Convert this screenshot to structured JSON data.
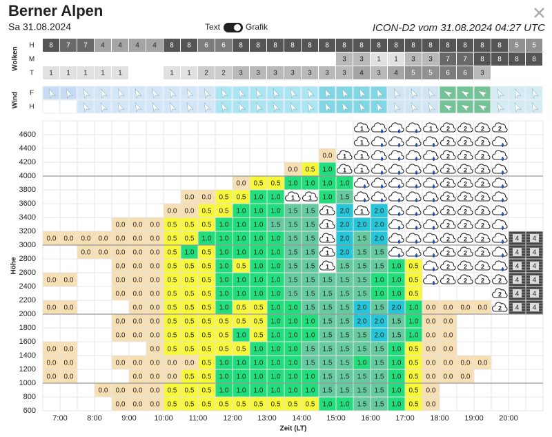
{
  "header": {
    "title": "Berner Alpen",
    "date": "Sa 31.08.2024",
    "toggle_left": "Text",
    "toggle_right": "Grafik",
    "model": "ICON-D2 vom 31.08.2024 04:27 UTC"
  },
  "clouds": {
    "label": "Wolken",
    "rows": [
      {
        "name": "H",
        "values": [
          8,
          7,
          7,
          4,
          4,
          4,
          4,
          8,
          8,
          6,
          6,
          8,
          8,
          8,
          8,
          8,
          8,
          8,
          8,
          8,
          8,
          8,
          8,
          8,
          8,
          8,
          8,
          5,
          5
        ]
      },
      {
        "name": "M",
        "values": [
          null,
          null,
          null,
          null,
          null,
          null,
          null,
          null,
          null,
          null,
          null,
          null,
          null,
          null,
          null,
          null,
          null,
          3,
          3,
          1,
          1,
          3,
          3,
          7,
          7,
          8,
          8,
          8,
          8
        ]
      },
      {
        "name": "T",
        "values": [
          1,
          1,
          1,
          1,
          1,
          null,
          null,
          1,
          1,
          2,
          2,
          3,
          3,
          3,
          3,
          3,
          3,
          3,
          4,
          3,
          4,
          5,
          5,
          6,
          6,
          3,
          null,
          null,
          null
        ]
      }
    ]
  },
  "wind": {
    "label": "Wind",
    "rows": [
      {
        "name": "F"
      },
      {
        "name": "H"
      }
    ]
  },
  "grid": {
    "y_label": "Höhe",
    "x_label": "Zeit (LT)",
    "yticks": [
      4600,
      4400,
      4200,
      4000,
      3800,
      3600,
      3400,
      3200,
      3000,
      2800,
      2600,
      2400,
      2200,
      2000,
      1800,
      1600,
      1400,
      1200,
      1000,
      800,
      600
    ],
    "times": [
      "7:00",
      "8:00",
      "9:00",
      "10:00",
      "11:00",
      "12:00",
      "13:00",
      "14:00",
      "15:00",
      "16:00",
      "17:00",
      "18:00",
      "19:00",
      "20:00"
    ],
    "colors": {
      "0.0": "#f6dfb2",
      "0.5": "#f8f83a",
      "1.0": "#22dd7c",
      "1.5": "#66caa0",
      "2.0": "#27c5d8"
    },
    "rows": [
      [
        null,
        null,
        null,
        null,
        null,
        null,
        null,
        null,
        null,
        null,
        null,
        null,
        null,
        null,
        null,
        null,
        null,
        null,
        {
          "icon": "cloud",
          "text": "1"
        },
        {
          "icon": "rain"
        },
        {
          "icon": "rain"
        },
        {
          "icon": "rain"
        },
        {
          "icon": "cloud",
          "text": "1"
        },
        {
          "icon": "cloud",
          "text": "2"
        },
        {
          "icon": "cloud",
          "text": "2"
        },
        {
          "icon": "cloud",
          "text": "2"
        },
        {
          "icon": "cloud",
          "text": "2"
        },
        null,
        null
      ],
      [
        null,
        null,
        null,
        null,
        null,
        null,
        null,
        null,
        null,
        null,
        null,
        null,
        null,
        null,
        null,
        null,
        null,
        null,
        {
          "icon": "cloud",
          "text": "1"
        },
        {
          "icon": "rain"
        },
        {
          "icon": "rain"
        },
        {
          "icon": "rain"
        },
        {
          "icon": "rain"
        },
        {
          "icon": "cloud",
          "text": "2"
        },
        {
          "icon": "cloud",
          "text": "2"
        },
        {
          "icon": "cloud",
          "text": "2"
        },
        {
          "icon": "rain"
        },
        null,
        null
      ],
      [
        null,
        null,
        null,
        null,
        null,
        null,
        null,
        null,
        null,
        null,
        null,
        null,
        null,
        null,
        null,
        null,
        "0.0",
        {
          "icon": "cloud",
          "text": "1"
        },
        {
          "icon": "cloud",
          "text": "1"
        },
        {
          "icon": "rain"
        },
        {
          "icon": "rain"
        },
        {
          "icon": "rain"
        },
        {
          "icon": "rain"
        },
        {
          "icon": "cloud",
          "text": "2"
        },
        {
          "icon": "cloud",
          "text": "2"
        },
        {
          "icon": "cloud",
          "text": "2"
        },
        {
          "icon": "rain"
        },
        null,
        null
      ],
      [
        null,
        null,
        null,
        null,
        null,
        null,
        null,
        null,
        null,
        null,
        null,
        null,
        null,
        null,
        "0.0",
        "0.5",
        "1.0",
        {
          "icon": "cloud",
          "text": "1"
        },
        {
          "icon": "cloud",
          "text": "1"
        },
        {
          "icon": "rain"
        },
        {
          "icon": "rain"
        },
        {
          "icon": "rain"
        },
        {
          "icon": "rain"
        },
        {
          "icon": "cloud",
          "text": "2"
        },
        {
          "icon": "cloud",
          "text": "2"
        },
        {
          "icon": "cloud",
          "text": "2"
        },
        {
          "icon": "rain"
        },
        null,
        null
      ],
      [
        null,
        null,
        null,
        null,
        null,
        null,
        null,
        null,
        null,
        null,
        null,
        "0.0",
        "0.5",
        "0.5",
        "1.0",
        "1.0",
        "1.0",
        "1.0",
        {
          "icon": "rain"
        },
        {
          "icon": "rain"
        },
        {
          "icon": "rain"
        },
        {
          "icon": "rain"
        },
        {
          "icon": "rain"
        },
        {
          "icon": "cloud",
          "text": "2"
        },
        {
          "icon": "cloud",
          "text": "2"
        },
        {
          "icon": "cloud",
          "text": "2"
        },
        {
          "icon": "rain"
        },
        null,
        null
      ],
      [
        null,
        null,
        null,
        null,
        null,
        null,
        null,
        null,
        "0.0",
        "0.0",
        "0.5",
        "0.5",
        "1.0",
        "1.0",
        {
          "icon": "cloud",
          "text": "1"
        },
        {
          "icon": "cloud",
          "text": "1"
        },
        "1.0",
        "1.5",
        {
          "icon": "rain"
        },
        {
          "icon": "rain"
        },
        {
          "icon": "rain"
        },
        {
          "icon": "rain"
        },
        {
          "icon": "rain"
        },
        {
          "icon": "cloud",
          "text": "2"
        },
        {
          "icon": "cloud",
          "text": "2"
        },
        {
          "icon": "cloud",
          "text": "2"
        },
        {
          "icon": "rain"
        },
        null,
        null
      ],
      [
        null,
        null,
        null,
        null,
        null,
        null,
        null,
        "0.0",
        "0.0",
        "0.5",
        "0.5",
        "1.0",
        "1.0",
        "1.0",
        "1.5",
        "1.5",
        {
          "icon": "cloud",
          "text": "1"
        },
        "2.0",
        {
          "icon": "cloud",
          "text": "1"
        },
        "2.0",
        {
          "icon": "rain"
        },
        {
          "icon": "rain"
        },
        {
          "icon": "rain"
        },
        {
          "icon": "cloud",
          "text": "2"
        },
        {
          "icon": "cloud",
          "text": "2"
        },
        {
          "icon": "cloud",
          "text": "2"
        },
        {
          "icon": "rain"
        },
        null,
        null
      ],
      [
        null,
        null,
        null,
        null,
        "0.0",
        "0.0",
        "0.0",
        "0.5",
        "0.5",
        "0.5",
        "1.0",
        "1.0",
        "1.0",
        "1.5",
        "1.5",
        "1.5",
        {
          "icon": "cloud",
          "text": "1"
        },
        "2.0",
        "2.0",
        "2.0",
        {
          "icon": "rain"
        },
        {
          "icon": "rain"
        },
        {
          "icon": "rain"
        },
        {
          "icon": "cloud",
          "text": "2"
        },
        {
          "icon": "cloud",
          "text": "2"
        },
        {
          "icon": "cloud",
          "text": "2"
        },
        {
          "icon": "rain"
        },
        null,
        null
      ],
      [
        "0.0",
        "0.0",
        "0.0",
        "0.0",
        "0.0",
        "0.0",
        "0.0",
        "0.5",
        "0.5",
        "1.0",
        "1.0",
        "1.0",
        "1.0",
        "1.0",
        "1.5",
        "1.5",
        {
          "icon": "cloud",
          "text": "1"
        },
        "2.0",
        "1.5",
        "2.0",
        {
          "icon": "rain"
        },
        {
          "icon": "rain"
        },
        {
          "icon": "rain"
        },
        {
          "icon": "cloud",
          "text": "2"
        },
        {
          "icon": "cloud",
          "text": "2"
        },
        {
          "icon": "cloud",
          "text": "2"
        },
        {
          "icon": "rain"
        },
        {
          "icon": "striped",
          "text": "4"
        },
        {
          "icon": "striped",
          "text": "4"
        }
      ],
      [
        null,
        null,
        "0.0",
        "0.0",
        "0.0",
        "0.0",
        "0.0",
        "0.5",
        "1.0",
        "0.5",
        "1.0",
        "1.0",
        "1.0",
        "1.0",
        "1.5",
        "1.5",
        {
          "icon": "cloud",
          "text": "1"
        },
        "2.0",
        "1.5",
        "1.5",
        {
          "icon": "rain"
        },
        {
          "icon": "rain"
        },
        {
          "icon": "rain"
        },
        {
          "icon": "cloud",
          "text": "2"
        },
        {
          "icon": "cloud",
          "text": "2"
        },
        {
          "icon": "cloud",
          "text": "2"
        },
        {
          "icon": "rain"
        },
        {
          "icon": "striped",
          "text": "4"
        },
        {
          "icon": "striped",
          "text": "4"
        }
      ],
      [
        null,
        null,
        null,
        null,
        "0.0",
        "0.0",
        "0.0",
        "0.5",
        "0.5",
        "0.5",
        "1.0",
        "0.5",
        "1.0",
        "1.0",
        "1.5",
        "1.5",
        {
          "icon": "cloud",
          "text": "1"
        },
        "1.5",
        "1.5",
        "1.5",
        "1.0",
        "0.5",
        {
          "icon": "rain"
        },
        {
          "icon": "cloud",
          "text": "2"
        },
        {
          "icon": "cloud",
          "text": "2"
        },
        {
          "icon": "cloud",
          "text": "2"
        },
        {
          "icon": "rain"
        },
        {
          "icon": "striped",
          "text": "4"
        },
        {
          "icon": "striped",
          "text": "4"
        }
      ],
      [
        "0.0",
        "0.0",
        null,
        null,
        "0.0",
        "0.0",
        "0.0",
        "0.5",
        "0.5",
        "0.5",
        "1.0",
        "1.0",
        "1.0",
        "1.0",
        "1.5",
        "1.5",
        "1.5",
        "1.5",
        "1.5",
        "1.0",
        "1.0",
        "0.5",
        {
          "icon": "rain"
        },
        {
          "icon": "cloud",
          "text": "2"
        },
        {
          "icon": "cloud",
          "text": "2"
        },
        {
          "icon": "cloud",
          "text": "2"
        },
        {
          "icon": "cloud",
          "text": "2"
        },
        {
          "icon": "striped",
          "text": "4"
        },
        {
          "icon": "striped",
          "text": "4"
        }
      ],
      [
        null,
        null,
        null,
        null,
        "0.0",
        "0.0",
        "0.0",
        "0.5",
        "0.5",
        "0.5",
        "1.0",
        "1.0",
        "1.0",
        "1.0",
        "1.5",
        "1.5",
        "1.5",
        "1.5",
        "1.5",
        "1.0",
        "1.0",
        "0.5",
        null,
        null,
        null,
        null,
        {
          "icon": "cloud",
          "text": "2"
        },
        {
          "icon": "striped",
          "text": "4"
        },
        {
          "icon": "striped",
          "text": "4"
        }
      ],
      [
        "0.0",
        "0.0",
        null,
        null,
        null,
        "0.0",
        "0.0",
        "0.5",
        "0.5",
        "0.5",
        "1.0",
        "0.5",
        "0.5",
        "1.0",
        "1.0",
        "1.5",
        "1.5",
        "1.5",
        "2.0",
        "1.5",
        "2.0",
        "1.0",
        "0.0",
        "0.0",
        "0.0",
        "0.0",
        {
          "icon": "cloud",
          "text": "2"
        },
        {
          "icon": "striped",
          "text": "4"
        },
        {
          "icon": "striped",
          "text": "4"
        }
      ],
      [
        null,
        null,
        null,
        null,
        "0.0",
        "0.0",
        "0.0",
        "0.5",
        "0.5",
        "0.5",
        "0.5",
        "0.5",
        "0.5",
        "1.0",
        "1.0",
        "1.0",
        "1.5",
        "1.5",
        "2.0",
        "2.0",
        "1.5",
        "1.0",
        "0.0",
        "0.0",
        null,
        null,
        null,
        null,
        null
      ],
      [
        null,
        null,
        null,
        null,
        "0.0",
        "0.0",
        "0.0",
        "0.5",
        "0.5",
        "0.5",
        "0.5",
        "1.0",
        "0.5",
        "1.0",
        "1.0",
        "1.0",
        "1.5",
        "1.5",
        "1.5",
        "2.0",
        "1.5",
        "1.0",
        "0.0",
        "0.0",
        null,
        null,
        null,
        null,
        null
      ],
      [
        "0.0",
        "0.0",
        null,
        null,
        null,
        null,
        "0.0",
        "0.5",
        "0.5",
        "0.5",
        "0.5",
        "0.5",
        "1.0",
        "1.0",
        "1.0",
        "1.5",
        "1.5",
        "1.5",
        "1.5",
        "1.5",
        "1.0",
        "0.5",
        "0.0",
        "0.0",
        null,
        null,
        null,
        null,
        null
      ],
      [
        "0.0",
        "0.0",
        null,
        null,
        "0.0",
        "0.0",
        "0.0",
        "0.0",
        "0.0",
        "0.5",
        "1.0",
        "1.0",
        "1.0",
        "1.0",
        "1.0",
        "1.5",
        "1.5",
        "1.5",
        "1.0",
        "1.5",
        "1.0",
        "0.5",
        "0.0",
        "0.0",
        "0.0",
        "0.0",
        null,
        null,
        null
      ],
      [
        "0.0",
        "0.0",
        null,
        null,
        null,
        "0.0",
        "0.0",
        "0.0",
        "0.5",
        "0.5",
        "1.0",
        "1.0",
        "1.0",
        "1.0",
        "1.0",
        "1.0",
        "1.5",
        "1.5",
        "1.5",
        "1.5",
        "1.0",
        "0.5",
        "0.0",
        "0.0",
        "0.0",
        null,
        null,
        null,
        null
      ],
      [
        null,
        null,
        null,
        "0.0",
        "0.0",
        "0.0",
        "0.0",
        "0.5",
        "0.5",
        "0.5",
        "1.0",
        "1.0",
        "1.0",
        "1.0",
        "1.0",
        "1.0",
        "1.5",
        "1.5",
        "1.5",
        "1.5",
        "1.0",
        "0.5",
        "0.0",
        null,
        null,
        null,
        null,
        null,
        null
      ],
      [
        null,
        null,
        null,
        null,
        "0.0",
        "0.0",
        "0.0",
        "0.5",
        "0.5",
        "0.5",
        "0.5",
        "0.5",
        "0.5",
        "0.5",
        "0.5",
        "0.5",
        "1.0",
        "1.0",
        "1.5",
        "1.5",
        "1.0",
        "0.5",
        "0.0",
        null,
        null,
        null,
        null,
        null,
        null
      ]
    ]
  }
}
